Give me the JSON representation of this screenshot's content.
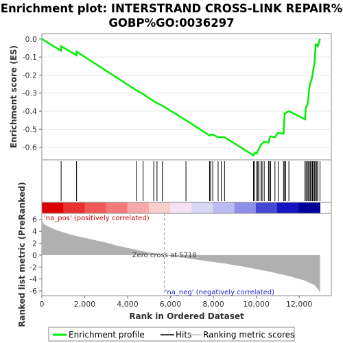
{
  "chart_data": {
    "type": "line",
    "title_line1": "Enrichment plot: INTERSTRAND CROSS-LINK REPAIR%",
    "title_line2": "GOBP%GO:0036297",
    "es_panel": {
      "ylabel": "Enrichment score (ES)",
      "ylim": [
        -0.67,
        0.03
      ],
      "yticks": [
        "0.0",
        "-0.1",
        "-0.2",
        "-0.3",
        "-0.4",
        "-0.5",
        "-0.6"
      ],
      "ytick_values": [
        0.0,
        -0.1,
        -0.2,
        -0.3,
        -0.4,
        -0.5,
        -0.6
      ],
      "series_name": "Enrichment profile",
      "color": "#00ee00",
      "points": [
        [
          0,
          0.0
        ],
        [
          900,
          -0.065
        ],
        [
          900,
          -0.04
        ],
        [
          1620,
          -0.09
        ],
        [
          1620,
          -0.07
        ],
        [
          4420,
          -0.285
        ],
        [
          4720,
          -0.305
        ],
        [
          5220,
          -0.345
        ],
        [
          5370,
          -0.355
        ],
        [
          5620,
          -0.37
        ],
        [
          6720,
          -0.45
        ],
        [
          7820,
          -0.535
        ],
        [
          7870,
          -0.53
        ],
        [
          7970,
          -0.53
        ],
        [
          8220,
          -0.545
        ],
        [
          8370,
          -0.545
        ],
        [
          8520,
          -0.545
        ],
        [
          9870,
          -0.645
        ],
        [
          9920,
          -0.63
        ],
        [
          10020,
          -0.635
        ],
        [
          10070,
          -0.62
        ],
        [
          10120,
          -0.61
        ],
        [
          10220,
          -0.585
        ],
        [
          10270,
          -0.58
        ],
        [
          10370,
          -0.57
        ],
        [
          10570,
          -0.575
        ],
        [
          10620,
          -0.55
        ],
        [
          10670,
          -0.54
        ],
        [
          10870,
          -0.545
        ],
        [
          11020,
          -0.52
        ],
        [
          11270,
          -0.525
        ],
        [
          11320,
          -0.415
        ],
        [
          11370,
          -0.41
        ],
        [
          11520,
          -0.4
        ],
        [
          12270,
          -0.445
        ],
        [
          12320,
          -0.375
        ],
        [
          12370,
          -0.37
        ],
        [
          12420,
          -0.345
        ],
        [
          12470,
          -0.275
        ],
        [
          12520,
          -0.24
        ],
        [
          12570,
          -0.23
        ],
        [
          12620,
          -0.2
        ],
        [
          12670,
          -0.16
        ],
        [
          12720,
          -0.13
        ],
        [
          12770,
          -0.03
        ],
        [
          12820,
          -0.03
        ],
        [
          12870,
          -0.04
        ],
        [
          12970,
          0.0
        ]
      ]
    },
    "hits": [
      900,
      1620,
      4420,
      4720,
      5220,
      5370,
      5620,
      6720,
      7820,
      7870,
      7970,
      8220,
      8370,
      8520,
      9870,
      9920,
      10020,
      10070,
      10120,
      10220,
      10270,
      10370,
      10570,
      10620,
      10670,
      10870,
      11020,
      11270,
      11320,
      11370,
      11520,
      12270,
      12320,
      12370,
      12420,
      12470,
      12520,
      12570,
      12620,
      12670,
      12720,
      12770,
      12820,
      12870,
      12970
    ],
    "colorbar": {
      "segments": [
        "#dd0000",
        "#e83030",
        "#f25858",
        "#f47a7a",
        "#f7a8a8",
        "#f9cece",
        "#f4e2f2",
        "#d8d8f6",
        "#bcbcf2",
        "#8f8fe8",
        "#4646d4",
        "#1414c0",
        "#00009a"
      ],
      "pos_label": "'na_pos' (positively correlated)",
      "neg_label": "'na_neg' (negatively correlated)"
    },
    "metric_panel": {
      "ylabel": "Ranked list metric (PreRanked)",
      "ylim": [
        -6.8,
        7.0
      ],
      "yticks": [
        "6",
        "4",
        "2",
        "0",
        "-2",
        "-4",
        "-6"
      ],
      "ytick_values": [
        6,
        4,
        2,
        0,
        -2,
        -4,
        -6
      ],
      "zero_cross": 5718,
      "zero_cross_label": "Zero cross at 5718",
      "metric_curve": [
        [
          0,
          5.8
        ],
        [
          100,
          5.2
        ],
        [
          300,
          4.8
        ],
        [
          600,
          4.3
        ],
        [
          1000,
          3.8
        ],
        [
          1500,
          3.3
        ],
        [
          2000,
          2.9
        ],
        [
          2500,
          2.5
        ],
        [
          3000,
          2.1
        ],
        [
          3500,
          1.6
        ],
        [
          4000,
          1.2
        ],
        [
          4500,
          0.8
        ],
        [
          5000,
          0.45
        ],
        [
          5718,
          0.0
        ],
        [
          6500,
          -0.4
        ],
        [
          7500,
          -0.9
        ],
        [
          8500,
          -1.4
        ],
        [
          9500,
          -2.0
        ],
        [
          10500,
          -2.7
        ],
        [
          11500,
          -3.5
        ],
        [
          12200,
          -4.2
        ],
        [
          12700,
          -5.0
        ],
        [
          12900,
          -5.8
        ],
        [
          12970,
          -6.3
        ]
      ]
    },
    "xaxis": {
      "label": "Rank in Ordered Dataset",
      "xlim": [
        0,
        13500
      ],
      "ticks": [
        "0",
        "2,000",
        "4,000",
        "6,000",
        "8,000",
        "10,000",
        "12,000"
      ],
      "tick_values": [
        0,
        2000,
        4000,
        6000,
        8000,
        10000,
        12000
      ]
    },
    "legend": {
      "items": [
        {
          "label": "Enrichment profile",
          "color": "#00ee00"
        },
        {
          "label": "Hits",
          "color": "#000000"
        },
        {
          "label": "Ranking metric scores",
          "color": "#c0c0c0"
        }
      ],
      "placement": "bottom"
    }
  }
}
